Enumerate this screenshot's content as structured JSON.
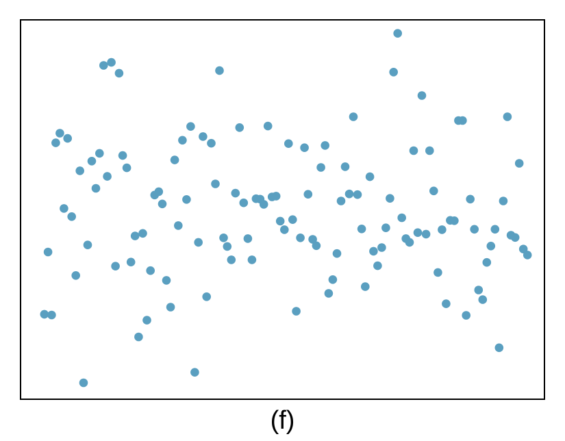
{
  "caption": "(f)",
  "colors": {
    "point": "#5a9fc0",
    "frame": "#000000",
    "background": "#ffffff"
  },
  "chart_data": {
    "type": "scatter",
    "title": "",
    "xlabel": "",
    "ylabel": "",
    "xlim": [
      0,
      100
    ],
    "ylim": [
      0,
      100
    ],
    "ticks": "none",
    "grid": false,
    "points": [
      [
        3.7,
        21.9
      ],
      [
        5.1,
        21.7
      ],
      [
        4.4,
        38.6
      ],
      [
        5.9,
        67.9
      ],
      [
        6.7,
        70.5
      ],
      [
        7.5,
        50.3
      ],
      [
        8.2,
        69.1
      ],
      [
        9.0,
        48.1
      ],
      [
        9.8,
        32.3
      ],
      [
        10.6,
        60.4
      ],
      [
        11.3,
        3.5
      ],
      [
        12.1,
        40.5
      ],
      [
        12.9,
        63.0
      ],
      [
        13.7,
        55.7
      ],
      [
        14.4,
        65.1
      ],
      [
        15.2,
        88.7
      ],
      [
        15.9,
        58.9
      ],
      [
        16.7,
        89.5
      ],
      [
        17.5,
        34.8
      ],
      [
        18.2,
        86.6
      ],
      [
        18.9,
        64.5
      ],
      [
        19.7,
        61.2
      ],
      [
        20.5,
        35.9
      ],
      [
        21.3,
        42.9
      ],
      [
        22.0,
        15.8
      ],
      [
        22.8,
        43.6
      ],
      [
        23.6,
        20.3
      ],
      [
        24.3,
        33.6
      ],
      [
        25.1,
        53.9
      ],
      [
        25.9,
        54.8
      ],
      [
        26.6,
        51.5
      ],
      [
        27.4,
        31.0
      ],
      [
        28.2,
        23.8
      ],
      [
        29.0,
        63.3
      ],
      [
        29.7,
        45.7
      ],
      [
        30.5,
        68.6
      ],
      [
        31.3,
        52.7
      ],
      [
        32.1,
        72.3
      ],
      [
        32.9,
        6.3
      ],
      [
        33.6,
        41.2
      ],
      [
        34.5,
        69.6
      ],
      [
        35.2,
        26.6
      ],
      [
        36.1,
        67.8
      ],
      [
        36.9,
        56.9
      ],
      [
        37.7,
        87.3
      ],
      [
        38.5,
        42.4
      ],
      [
        39.2,
        40.1
      ],
      [
        40.0,
        36.5
      ],
      [
        40.8,
        54.4
      ],
      [
        41.6,
        72.0
      ],
      [
        42.4,
        51.8
      ],
      [
        43.2,
        42.2
      ],
      [
        44.0,
        36.5
      ],
      [
        44.8,
        52.9
      ],
      [
        45.6,
        52.8
      ],
      [
        46.3,
        51.4
      ],
      [
        47.1,
        72.4
      ],
      [
        47.9,
        53.4
      ],
      [
        48.7,
        53.6
      ],
      [
        49.5,
        46.9
      ],
      [
        50.3,
        44.6
      ],
      [
        51.1,
        67.7
      ],
      [
        51.9,
        47.3
      ],
      [
        52.6,
        22.7
      ],
      [
        53.4,
        42.4
      ],
      [
        54.2,
        66.6
      ],
      [
        54.9,
        54.1
      ],
      [
        55.8,
        42.0
      ],
      [
        56.5,
        40.3
      ],
      [
        57.4,
        61.3
      ],
      [
        58.2,
        67.2
      ],
      [
        58.9,
        27.5
      ],
      [
        59.7,
        31.2
      ],
      [
        60.5,
        38.2
      ],
      [
        61.3,
        52.3
      ],
      [
        62.1,
        61.5
      ],
      [
        62.9,
        54.2
      ],
      [
        63.7,
        74.9
      ],
      [
        64.5,
        54.0
      ],
      [
        65.3,
        44.8
      ],
      [
        66.0,
        29.3
      ],
      [
        66.9,
        58.8
      ],
      [
        67.6,
        38.8
      ],
      [
        68.4,
        34.9
      ],
      [
        69.2,
        39.8
      ],
      [
        70.0,
        45.1
      ],
      [
        70.8,
        53.0
      ],
      [
        71.5,
        86.9
      ],
      [
        72.3,
        97.3
      ],
      [
        73.1,
        47.8
      ],
      [
        73.9,
        42.2
      ],
      [
        74.6,
        41.2
      ],
      [
        75.4,
        65.8
      ],
      [
        76.2,
        43.8
      ],
      [
        77.0,
        80.6
      ],
      [
        77.8,
        43.4
      ],
      [
        78.5,
        65.8
      ],
      [
        79.3,
        55.0
      ],
      [
        80.1,
        33.1
      ],
      [
        80.9,
        44.6
      ],
      [
        81.7,
        24.7
      ],
      [
        82.5,
        47.1
      ],
      [
        83.3,
        47.0
      ],
      [
        84.1,
        73.9
      ],
      [
        84.9,
        73.9
      ],
      [
        85.6,
        21.6
      ],
      [
        86.4,
        52.8
      ],
      [
        87.2,
        44.7
      ],
      [
        88.0,
        28.4
      ],
      [
        88.8,
        25.8
      ],
      [
        89.6,
        35.8
      ],
      [
        90.4,
        40.2
      ],
      [
        91.2,
        44.7
      ],
      [
        92.0,
        12.9
      ],
      [
        92.8,
        52.3
      ],
      [
        93.6,
        74.9
      ],
      [
        94.3,
        43.1
      ],
      [
        95.1,
        42.5
      ],
      [
        95.9,
        62.4
      ],
      [
        96.7,
        39.4
      ],
      [
        97.5,
        37.8
      ]
    ]
  }
}
